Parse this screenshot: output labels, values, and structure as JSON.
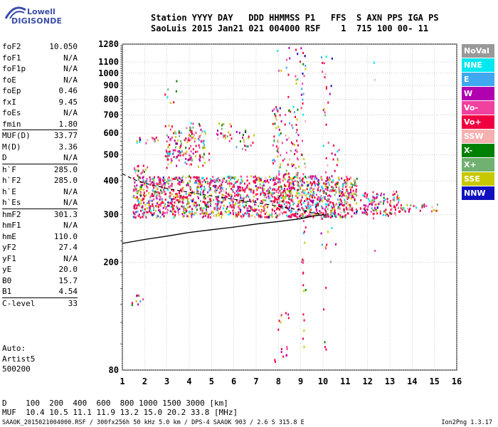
{
  "logo": {
    "line1": "Lowell",
    "line2": "DIGISONDE"
  },
  "header": {
    "line1": "Station YYYY DAY   DDD HHMMSS P1   FFS  S AXN PPS IGA PS",
    "line2": "SaoLuis 2015 Jan21 021 004000 RSF    1  715 100 00- 11"
  },
  "params": [
    {
      "k": "foF2",
      "v": "10.050"
    },
    {
      "k": "foF1",
      "v": "N/A"
    },
    {
      "k": "foF1p",
      "v": "N/A"
    },
    {
      "k": "foE",
      "v": "N/A"
    },
    {
      "k": "foEp",
      "v": "0.46"
    },
    {
      "k": "fxI",
      "v": "9.45"
    },
    {
      "k": "foEs",
      "v": "N/A"
    },
    {
      "k": "fmin",
      "v": "1.80"
    },
    {
      "k": "MUF(D)",
      "v": "33.77",
      "sep": true
    },
    {
      "k": "M(D)",
      "v": "3.36"
    },
    {
      "k": "D",
      "v": "N/A"
    },
    {
      "k": "h`F",
      "v": "285.0",
      "sep": true
    },
    {
      "k": "h`F2",
      "v": "285.0"
    },
    {
      "k": "h`E",
      "v": "N/A"
    },
    {
      "k": "h`Es",
      "v": "N/A"
    },
    {
      "k": "hmF2",
      "v": "301.3",
      "sep": true
    },
    {
      "k": "hmF1",
      "v": "N/A"
    },
    {
      "k": "hmE",
      "v": "110.0"
    },
    {
      "k": "yF2",
      "v": "27.4"
    },
    {
      "k": "yF1",
      "v": "N/A"
    },
    {
      "k": "yE",
      "v": "20.0"
    },
    {
      "k": "B0",
      "v": "15.7"
    },
    {
      "k": "B1",
      "v": "4.54"
    },
    {
      "k": "C-level",
      "v": "33",
      "sep": true
    }
  ],
  "auto": {
    "l1": "Auto:",
    "l2": "Artist5",
    "l3": "500200"
  },
  "legend": [
    {
      "label": "NoVal",
      "color": "#999999"
    },
    {
      "label": "NNE",
      "color": "#00e8f0"
    },
    {
      "label": "E",
      "color": "#3fa8f0"
    },
    {
      "label": "W",
      "color": "#b000b0"
    },
    {
      "label": "Vo-",
      "color": "#f040a0"
    },
    {
      "label": "Vo+",
      "color": "#f00040"
    },
    {
      "label": "SSW",
      "color": "#f5b0b0"
    },
    {
      "label": "X-",
      "color": "#008000"
    },
    {
      "label": "X+",
      "color": "#70b070"
    },
    {
      "label": "SSE",
      "color": "#c8c800"
    },
    {
      "label": "NNW",
      "color": "#1010c0"
    }
  ],
  "footer": {
    "dline": "D    100  200  400  600  800 1000 1500 3000 [km]",
    "mline": "MUF  10.4 10.5 11.1 11.9 13.2 15.0 20.2 33.8 [MHz]",
    "file": "SAAOK_2015021004000.RSF / 300fx256h 50 kHz 5.0 km / DPS-4 SAAOK 903 / 2.6 S 315.8 E",
    "version": "Ion2Png 1.3.17"
  },
  "chart_data": {
    "type": "scatter",
    "title": "",
    "xlabel": "",
    "ylabel": "",
    "xlim": [
      1,
      16
    ],
    "ylim": [
      80,
      1280
    ],
    "x_ticks": [
      1,
      2,
      3,
      4,
      5,
      6,
      7,
      8,
      9,
      10,
      11,
      12,
      13,
      14,
      15,
      16
    ],
    "y_ticks": [
      80,
      200,
      300,
      400,
      500,
      600,
      700,
      800,
      900,
      1000,
      1100,
      1280
    ],
    "y_scale": "log",
    "grid": true,
    "trace_fit_line": [
      [
        1.0,
        235
      ],
      [
        2,
        243
      ],
      [
        3,
        250
      ],
      [
        4,
        258
      ],
      [
        5,
        264
      ],
      [
        6,
        270
      ],
      [
        7,
        277
      ],
      [
        8,
        283
      ],
      [
        9,
        290
      ],
      [
        9.6,
        297
      ],
      [
        10.05,
        300
      ]
    ],
    "dashed_line": [
      [
        1.0,
        425
      ],
      [
        1.5,
        405
      ],
      [
        2,
        392
      ],
      [
        3,
        375
      ],
      [
        4,
        363
      ],
      [
        5,
        352
      ],
      [
        6,
        342
      ],
      [
        7,
        333
      ],
      [
        8,
        322
      ],
      [
        9,
        312
      ],
      [
        9.5,
        305
      ],
      [
        10.05,
        300
      ]
    ],
    "echo_regions": [
      {
        "f0": 1.45,
        "f1": 11.5,
        "h0": 295,
        "h1": 420,
        "density": 0.55
      },
      {
        "f0": 1.5,
        "f1": 2.1,
        "h0": 420,
        "h1": 470,
        "density": 0.3
      },
      {
        "f0": 1.6,
        "f1": 2.6,
        "h0": 555,
        "h1": 585,
        "density": 0.35
      },
      {
        "f0": 2.9,
        "f1": 4.7,
        "h0": 450,
        "h1": 660,
        "density": 0.18
      },
      {
        "f0": 2.9,
        "f1": 4.9,
        "h0": 480,
        "h1": 520,
        "density": 0.3
      },
      {
        "f0": 3.5,
        "f1": 4.5,
        "h0": 560,
        "h1": 620,
        "density": 0.3
      },
      {
        "f0": 5.2,
        "f1": 5.9,
        "h0": 560,
        "h1": 660,
        "density": 0.22
      },
      {
        "f0": 6.0,
        "f1": 6.9,
        "h0": 520,
        "h1": 620,
        "density": 0.15
      },
      {
        "f0": 7.7,
        "f1": 8.9,
        "h0": 420,
        "h1": 760,
        "density": 0.16
      },
      {
        "f0": 7.9,
        "f1": 9.2,
        "h0": 800,
        "h1": 1270,
        "density": 0.05
      },
      {
        "f0": 2.8,
        "f1": 3.5,
        "h0": 780,
        "h1": 920,
        "density": 0.06
      },
      {
        "f0": 3.0,
        "f1": 4.0,
        "h0": 940,
        "h1": 960,
        "density": 0.08
      },
      {
        "f0": 9.8,
        "f1": 10.7,
        "h0": 200,
        "h1": 1250,
        "density": 0.035
      },
      {
        "f0": 11.8,
        "f1": 13.4,
        "h0": 300,
        "h1": 370,
        "density": 0.35
      },
      {
        "f0": 13.0,
        "f1": 15.2,
        "h0": 310,
        "h1": 330,
        "density": 0.35
      },
      {
        "f0": 11.6,
        "f1": 11.9,
        "h0": 300,
        "h1": 360,
        "density": 0.2
      },
      {
        "f0": 12.2,
        "f1": 12.35,
        "h0": 180,
        "h1": 1150,
        "density": 0.03
      },
      {
        "f0": 1.4,
        "f1": 1.9,
        "h0": 140,
        "h1": 155,
        "density": 0.2
      },
      {
        "f0": 7.8,
        "f1": 8.6,
        "h0": 85,
        "h1": 140,
        "density": 0.05
      },
      {
        "f0": 9.0,
        "f1": 9.2,
        "h0": 90,
        "h1": 1270,
        "density": 0.08
      },
      {
        "f0": 10.0,
        "f1": 10.12,
        "h0": 90,
        "h1": 1270,
        "density": 0.06
      }
    ]
  }
}
